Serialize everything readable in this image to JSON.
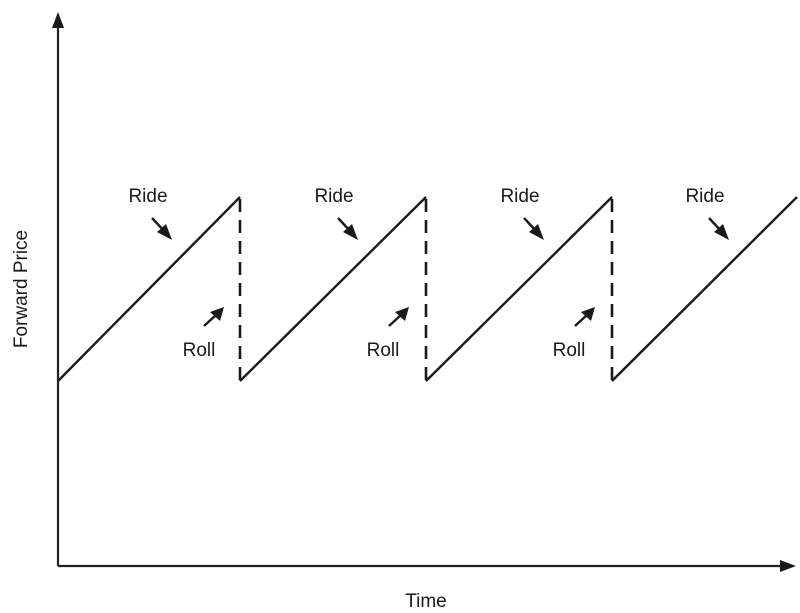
{
  "axes": {
    "x_label": "Time",
    "y_label": "Forward Price"
  },
  "ride_label": "Ride",
  "roll_label": "Roll",
  "cycles": [
    {
      "ride_label": "Ride",
      "roll_label": "Roll"
    },
    {
      "ride_label": "Ride",
      "roll_label": "Roll"
    },
    {
      "ride_label": "Ride",
      "roll_label": "Roll"
    },
    {
      "ride_label": "Ride"
    }
  ],
  "colors": {
    "line": "#1a1a1a",
    "background": "#ffffff"
  }
}
